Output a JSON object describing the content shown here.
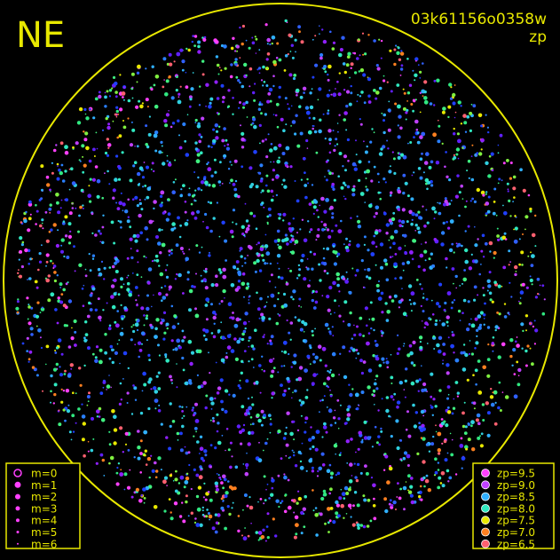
{
  "header": {
    "direction": "NE",
    "image_id": "03k61156o0358w",
    "mode": "zp"
  },
  "legend_m": [
    {
      "label": "m=0"
    },
    {
      "label": "m=1"
    },
    {
      "label": "m=2"
    },
    {
      "label": "m=3"
    },
    {
      "label": "m=4"
    },
    {
      "label": "m=5"
    },
    {
      "label": "m=6"
    }
  ],
  "legend_zp": [
    {
      "label": "zp=9.5",
      "color": "#ff40ff"
    },
    {
      "label": "zp=9.0",
      "color": "#c040ff"
    },
    {
      "label": "zp=8.5",
      "color": "#30b0ff"
    },
    {
      "label": "zp=8.0",
      "color": "#30e8c0"
    },
    {
      "label": "zp=7.5",
      "color": "#e8e800"
    },
    {
      "label": "zp=7.0",
      "color": "#ff8020"
    },
    {
      "label": "zp=6.5",
      "color": "#ff6070"
    }
  ]
}
